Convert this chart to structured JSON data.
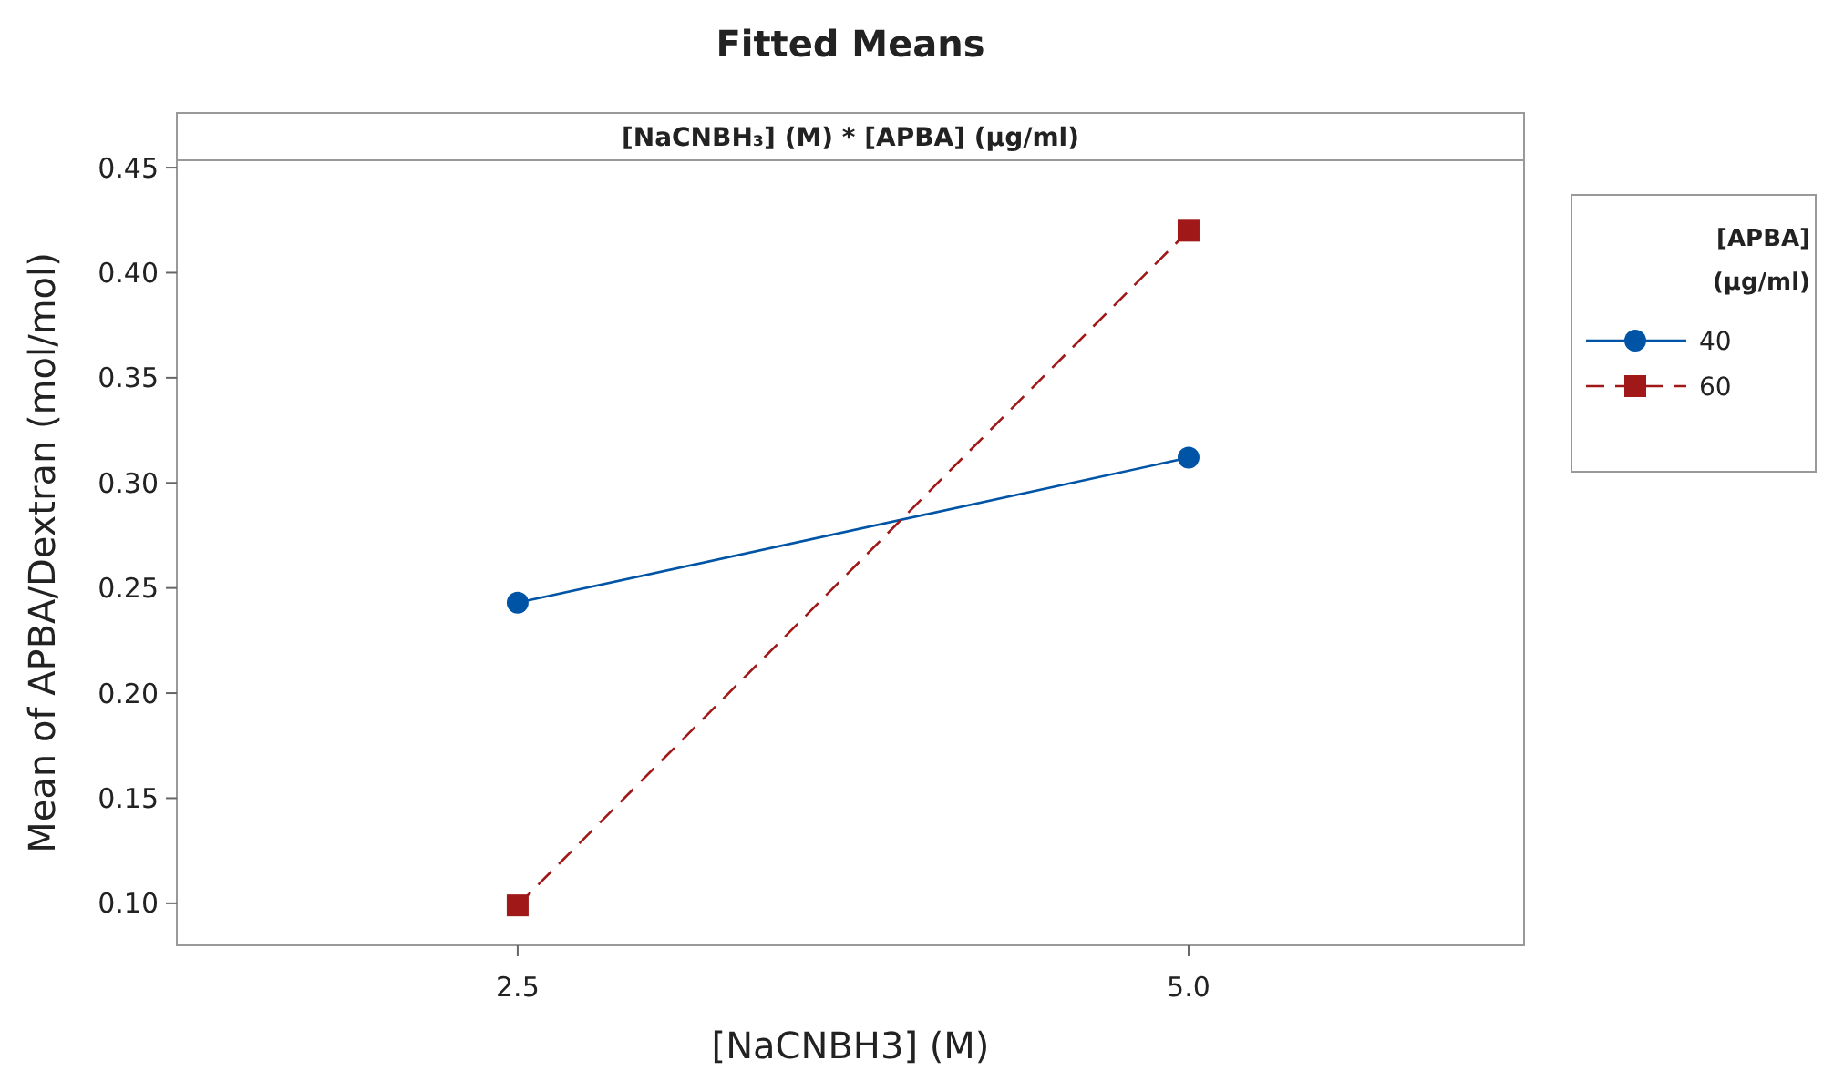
{
  "chart_data": {
    "type": "line",
    "title": "Fitted Means",
    "subtitle": "[NaCNBH₃] (M) * [APBA] (µg/ml)",
    "xlabel": "[NaCNBH3] (M)",
    "ylabel": "Mean of APBA/Dextran (mol/mol)",
    "legend_title": "[APBA] (µg/ml)",
    "legend": "right",
    "grid": false,
    "x": [
      2.5,
      5.0
    ],
    "xlim": [
      1.23,
      6.25
    ],
    "xticks": [
      2.5,
      {
        "value": 5,
        "label": "5.0"
      }
    ],
    "ylim": [
      0.08,
      0.4535
    ],
    "yticks": [
      {
        "value": 0.1,
        "label": "0.10"
      },
      0.15,
      {
        "value": 0.2,
        "label": "0.20"
      },
      0.25,
      {
        "value": 0.3,
        "label": "0.30"
      },
      0.35,
      {
        "value": 0.4,
        "label": "0.40"
      },
      0.45
    ],
    "series": [
      {
        "name": "40",
        "color": "#0054a6",
        "values": [
          0.243,
          0.312
        ],
        "marker": "circle",
        "line_style": "solid"
      },
      {
        "name": "60",
        "color": "#a01818",
        "values": [
          0.099,
          0.42
        ],
        "marker": "square",
        "line_style": "dashed"
      }
    ]
  }
}
